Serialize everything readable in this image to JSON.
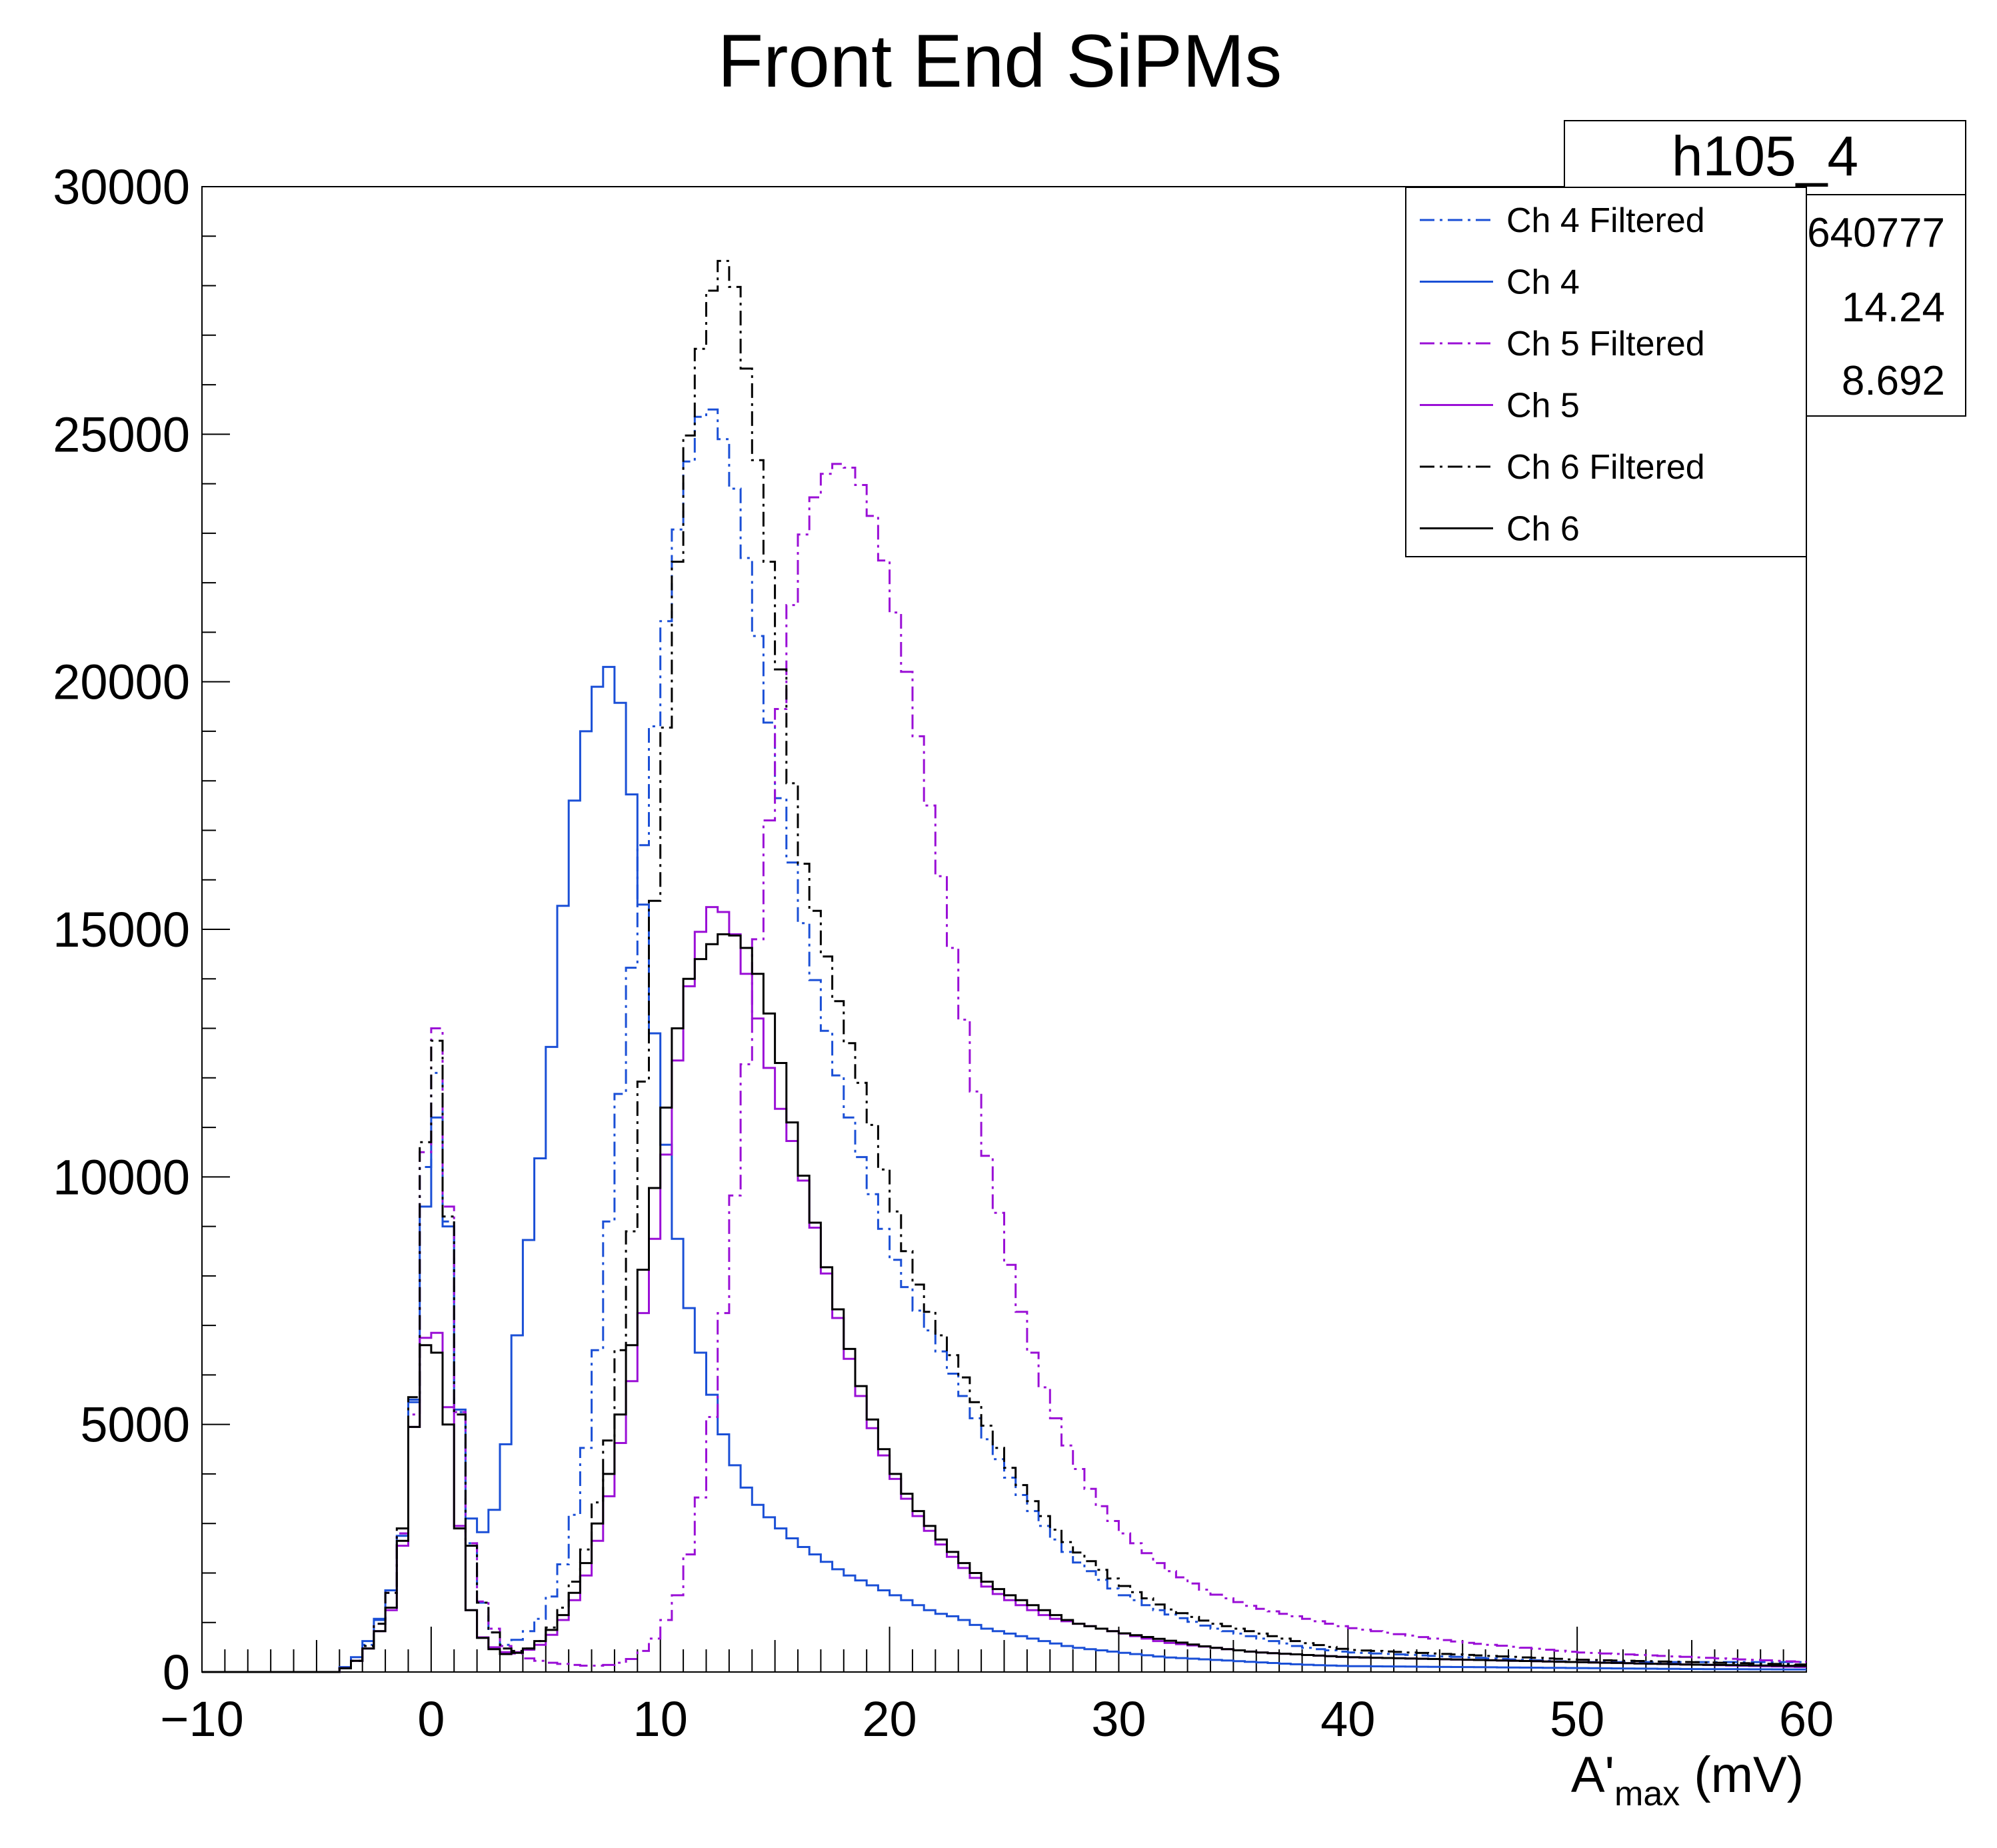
{
  "chart_data": {
    "type": "line",
    "subtype": "step-histogram",
    "title": "Front End SiPMs",
    "xlabel_main": "A'",
    "xlabel_sub": "max",
    "xlabel_unit": " (mV)",
    "xlim": [
      -10,
      60
    ],
    "ylim": [
      0,
      30000
    ],
    "x_ticks": [
      "−10",
      "0",
      "10",
      "20",
      "30",
      "40",
      "50",
      "60"
    ],
    "y_ticks": [
      "0",
      "5000",
      "10000",
      "15000",
      "20000",
      "25000",
      "30000"
    ],
    "stats_box": {
      "title": "h105_4",
      "values": [
        "640777",
        "14.24",
        "8.692"
      ]
    },
    "series": [
      {
        "name": "Ch 4 Filtered",
        "color": "#1a4fd6",
        "style": "dash-dot",
        "x": [
          -10,
          -4,
          -3,
          -2,
          -1.5,
          -1,
          -0.5,
          0,
          0.5,
          1,
          1.5,
          2,
          3,
          4,
          5,
          6,
          7,
          8,
          9,
          10,
          11,
          12,
          13,
          14,
          15,
          16,
          17,
          18,
          19,
          20,
          21,
          22,
          23,
          24,
          25,
          26,
          27,
          28,
          30,
          32,
          34,
          36,
          38,
          40,
          45,
          50,
          55,
          60
        ],
        "y": [
          0,
          0,
          300,
          1300,
          2000,
          3600,
          7400,
          13000,
          11200,
          7000,
          3500,
          1700,
          500,
          700,
          1200,
          2500,
          5200,
          10400,
          15500,
          20300,
          24000,
          25800,
          24600,
          21800,
          18300,
          15700,
          13400,
          11600,
          10000,
          8600,
          7500,
          6700,
          5800,
          4900,
          4100,
          3400,
          2800,
          2300,
          1600,
          1200,
          900,
          700,
          500,
          400,
          300,
          200,
          200,
          200
        ]
      },
      {
        "name": "Ch 4",
        "color": "#1a4fd6",
        "style": "solid",
        "x": [
          -10,
          -4,
          -3,
          -2,
          -1.5,
          -1,
          -0.5,
          0,
          0.5,
          1,
          1.5,
          2,
          3,
          4,
          5,
          6,
          7,
          8,
          9,
          10,
          11,
          12,
          13,
          14,
          15,
          16,
          17,
          18,
          19,
          20,
          21,
          22,
          23,
          24,
          25,
          26,
          27,
          28,
          30,
          32,
          34,
          36,
          38,
          40,
          45,
          50,
          55,
          60
        ],
        "y": [
          0,
          0,
          400,
          1300,
          2000,
          3500,
          7400,
          11400,
          11000,
          7000,
          3600,
          2600,
          3500,
          7900,
          11200,
          16900,
          19700,
          20500,
          16800,
          11600,
          7800,
          6000,
          4400,
          3500,
          3000,
          2600,
          2300,
          2000,
          1800,
          1600,
          1400,
          1200,
          1100,
          900,
          800,
          700,
          600,
          500,
          400,
          300,
          250,
          200,
          150,
          120,
          100,
          80,
          60,
          50
        ]
      },
      {
        "name": "Ch 5 Filtered",
        "color": "#9a0fd6",
        "style": "dash-dot",
        "x": [
          -10,
          -4,
          -3,
          -2,
          -1.5,
          -1,
          -0.5,
          0,
          0.5,
          1,
          1.5,
          2,
          3,
          4,
          5,
          6,
          7,
          8,
          9,
          10,
          11,
          12,
          13,
          14,
          15,
          16,
          17,
          18,
          19,
          20,
          21,
          22,
          23,
          24,
          25,
          26,
          27,
          28,
          29,
          30,
          32,
          34,
          36,
          38,
          40,
          45,
          50,
          55,
          60
        ],
        "y": [
          0,
          0,
          300,
          1200,
          2000,
          3600,
          6800,
          14200,
          11800,
          7000,
          3500,
          1700,
          600,
          300,
          200,
          150,
          120,
          150,
          300,
          800,
          1800,
          4100,
          8300,
          13600,
          18400,
          22600,
          24100,
          24500,
          23800,
          22000,
          19600,
          16800,
          13900,
          11000,
          8700,
          6800,
          5400,
          4300,
          3500,
          2900,
          2100,
          1600,
          1300,
          1100,
          900,
          600,
          400,
          300,
          200
        ]
      },
      {
        "name": "Ch 5",
        "color": "#9a0fd6",
        "style": "solid",
        "x": [
          -10,
          -4,
          -3,
          -2,
          -1.5,
          -1,
          -0.5,
          0,
          0.5,
          1,
          1.5,
          2,
          3,
          4,
          5,
          6,
          7,
          8,
          9,
          10,
          11,
          12,
          13,
          14,
          15,
          16,
          17,
          18,
          19,
          20,
          21,
          22,
          23,
          24,
          25,
          26,
          27,
          28,
          30,
          32,
          34,
          36,
          38,
          40,
          45,
          50,
          55,
          60
        ],
        "y": [
          0,
          0,
          300,
          1000,
          1500,
          3600,
          6300,
          7200,
          6500,
          4200,
          1700,
          800,
          400,
          400,
          600,
          1200,
          2200,
          4000,
          6500,
          9500,
          13300,
          15500,
          15300,
          13700,
          11700,
          10400,
          8500,
          6700,
          5200,
          4100,
          3300,
          2700,
          2200,
          1800,
          1500,
          1300,
          1100,
          1000,
          800,
          600,
          500,
          400,
          350,
          300,
          250,
          200,
          150,
          100
        ]
      },
      {
        "name": "Ch 6 Filtered",
        "color": "#000000",
        "style": "dash-dot",
        "x": [
          -10,
          -4,
          -3,
          -2,
          -1.5,
          -1,
          -0.5,
          0,
          0.5,
          1,
          1.5,
          2,
          3,
          4,
          5,
          6,
          7,
          8,
          9,
          10,
          11,
          12,
          13,
          14,
          15,
          16,
          17,
          18,
          19,
          20,
          21,
          22,
          23,
          24,
          25,
          26,
          27,
          28,
          30,
          32,
          34,
          36,
          38,
          40,
          45,
          50,
          55,
          60
        ],
        "y": [
          0,
          0,
          300,
          1200,
          2000,
          3800,
          7300,
          14100,
          11400,
          7000,
          3400,
          1700,
          500,
          400,
          700,
          1500,
          2800,
          5300,
          10100,
          17400,
          24100,
          27600,
          28800,
          25500,
          21400,
          16800,
          14900,
          13100,
          11500,
          9700,
          8100,
          7000,
          6200,
          5200,
          4300,
          3600,
          3000,
          2500,
          1800,
          1300,
          1000,
          800,
          600,
          450,
          350,
          250,
          200,
          150
        ]
      },
      {
        "name": "Ch 6",
        "color": "#000000",
        "style": "solid",
        "x": [
          -10,
          -4,
          -3,
          -2,
          -1.5,
          -1,
          -0.5,
          0,
          0.5,
          1,
          1.5,
          2,
          3,
          4,
          5,
          6,
          7,
          8,
          9,
          10,
          11,
          12,
          13,
          14,
          15,
          16,
          17,
          18,
          19,
          20,
          21,
          22,
          23,
          24,
          25,
          26,
          27,
          28,
          30,
          32,
          34,
          36,
          38,
          40,
          45,
          50,
          55,
          60
        ],
        "y": [
          0,
          0,
          300,
          1000,
          1600,
          3700,
          6200,
          7000,
          5900,
          4100,
          1700,
          800,
          350,
          400,
          700,
          1300,
          2500,
          4500,
          7300,
          10600,
          13800,
          14600,
          15000,
          14500,
          12900,
          10500,
          8600,
          6900,
          5400,
          4200,
          3400,
          2800,
          2300,
          1900,
          1600,
          1400,
          1200,
          1000,
          800,
          650,
          500,
          400,
          350,
          300,
          250,
          200,
          150,
          120
        ]
      }
    ]
  }
}
